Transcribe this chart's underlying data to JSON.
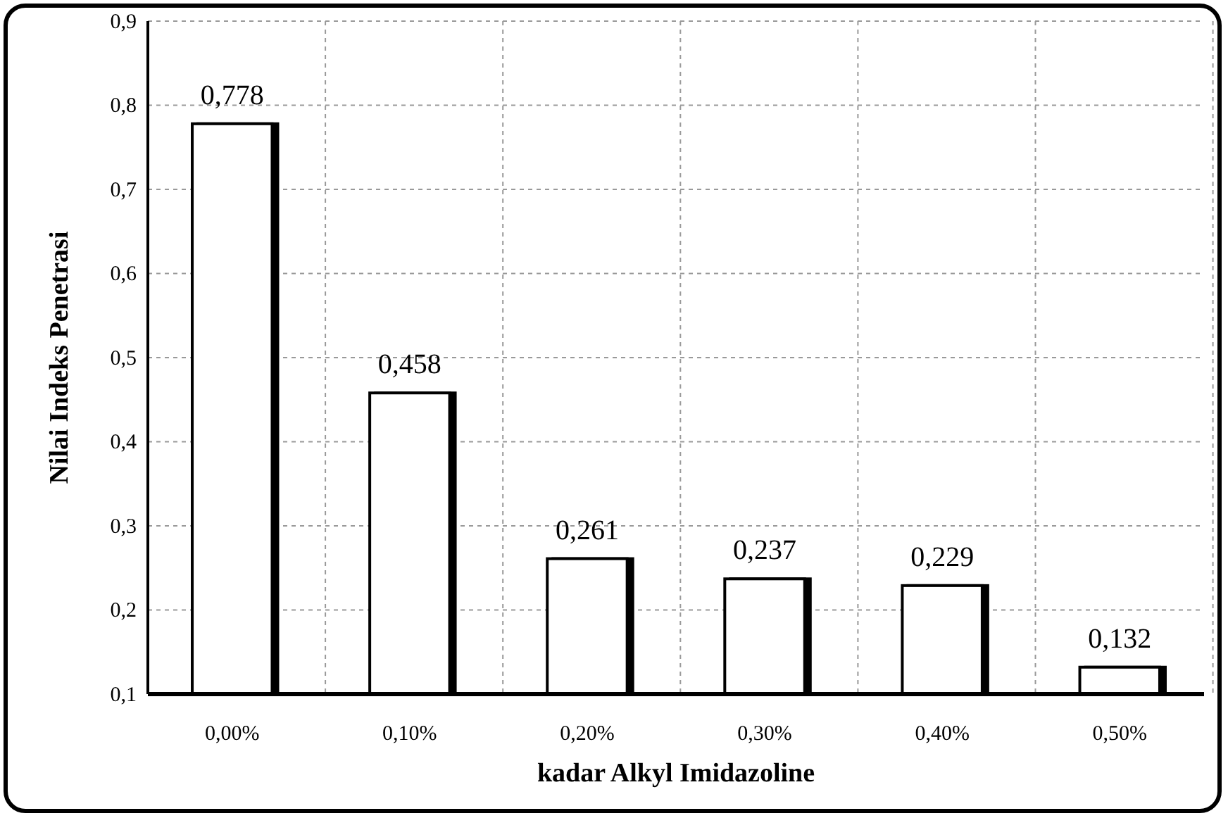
{
  "chart_data": {
    "type": "bar",
    "xlabel": "kadar Alkyl Imidazoline",
    "ylabel": "Nilai Indeks Penetrasi",
    "categories": [
      "0,00%",
      "0,10%",
      "0,20%",
      "0,30%",
      "0,40%",
      "0,50%"
    ],
    "values": [
      0.778,
      0.458,
      0.261,
      0.237,
      0.229,
      0.132
    ],
    "value_labels": [
      "0,778",
      "0,458",
      "0,261",
      "0,237",
      "0,229",
      "0,132"
    ],
    "color": "#ffffff",
    "ylim": [
      0.1,
      0.9
    ],
    "yticks": [
      {
        "value": 0.1,
        "label": "0,1"
      },
      {
        "value": 0.2,
        "label": "0,2"
      },
      {
        "value": 0.3,
        "label": "0,3"
      },
      {
        "value": 0.4,
        "label": "0,4"
      },
      {
        "value": 0.5,
        "label": "0,5"
      },
      {
        "value": 0.6,
        "label": "0,6"
      },
      {
        "value": 0.7,
        "label": "0,7"
      },
      {
        "value": 0.8,
        "label": "0,8"
      },
      {
        "value": 0.9,
        "label": "0,9"
      }
    ],
    "grid": true
  }
}
